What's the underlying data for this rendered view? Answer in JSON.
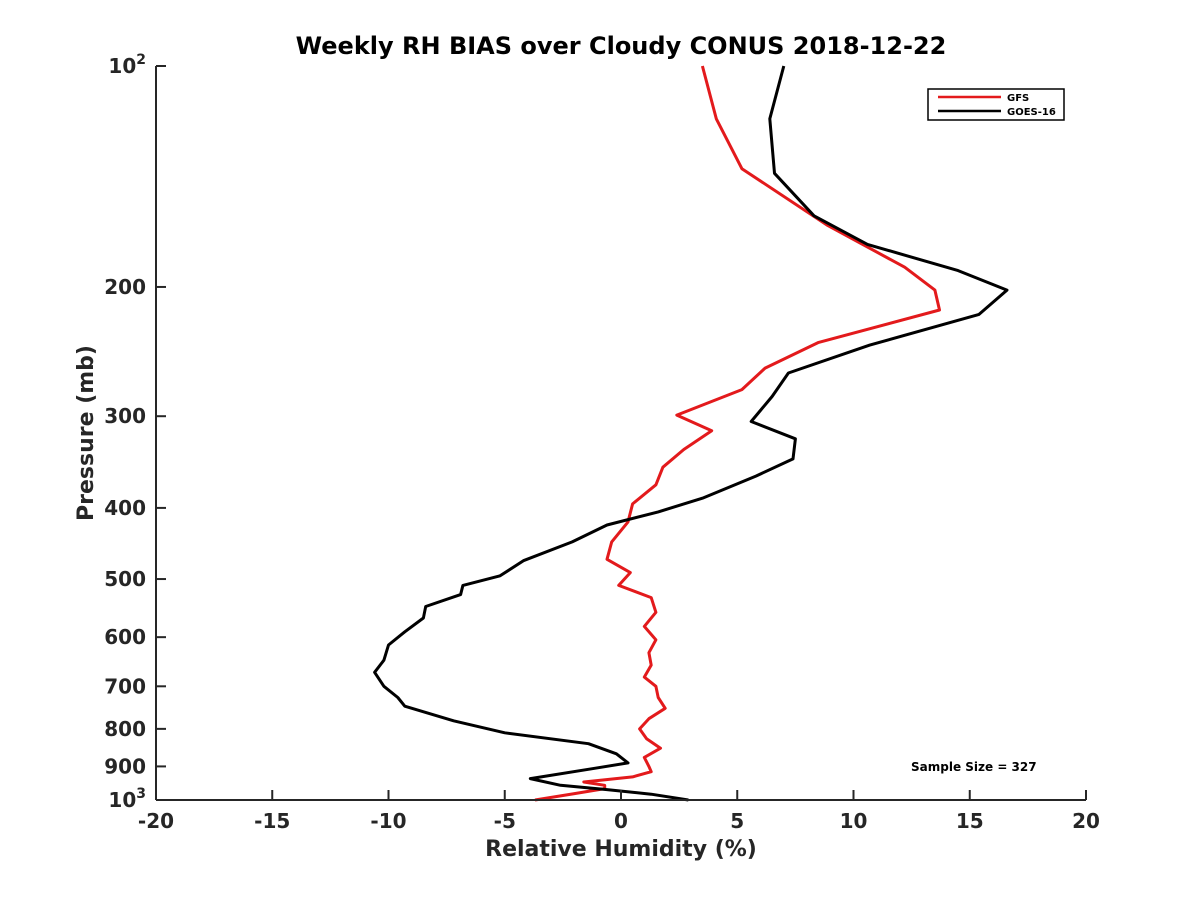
{
  "chart_data": {
    "type": "line",
    "title": "Weekly RH BIAS over Cloudy CONUS 2018-12-22",
    "xlabel": "Relative Humidity (%)",
    "ylabel": "Pressure (mb)",
    "xlim": [
      -20,
      20
    ],
    "ylim": [
      100,
      1000
    ],
    "y_scale": "log",
    "y_reversed": true,
    "grid": false,
    "legend_position": "top-right",
    "x_ticks": [
      -20,
      -15,
      -10,
      -5,
      0,
      5,
      10,
      15,
      20
    ],
    "x_tick_labels": [
      "-20",
      "-15",
      "-10",
      "-5",
      "0",
      "5",
      "10",
      "15",
      "20"
    ],
    "y_ticks": [
      100,
      200,
      300,
      400,
      500,
      600,
      700,
      800,
      900,
      1000
    ],
    "y_tick_labels": [
      {
        "base": "10",
        "exp": "2"
      },
      {
        "base": "200",
        "exp": ""
      },
      {
        "base": "300",
        "exp": ""
      },
      {
        "base": "400",
        "exp": ""
      },
      {
        "base": "500",
        "exp": ""
      },
      {
        "base": "600",
        "exp": ""
      },
      {
        "base": "700",
        "exp": ""
      },
      {
        "base": "800",
        "exp": ""
      },
      {
        "base": "900",
        "exp": ""
      },
      {
        "base": "10",
        "exp": "3"
      }
    ],
    "annotation": "Sample Size = 327",
    "series": [
      {
        "name": "GFS",
        "color": "#e31a1c",
        "x": [
          3.5,
          4.1,
          5.2,
          8.9,
          12.2,
          13.5,
          13.7,
          8.5,
          6.2,
          5.2,
          2.4,
          3.9,
          2.7,
          1.8,
          1.5,
          0.5,
          0.3,
          -0.4,
          -0.6,
          0.4,
          -0.1,
          1.3,
          1.5,
          1.0,
          1.5,
          1.2,
          1.3,
          1.0,
          1.5,
          1.6,
          1.9,
          1.2,
          0.8,
          1.1,
          1.7,
          1.0,
          1.2,
          1.3,
          0.5,
          -1.6,
          -0.7,
          -0.7,
          -2.0,
          -3.7
        ],
        "y": [
          100,
          118,
          138,
          165,
          188,
          202,
          215,
          238,
          258,
          276,
          299,
          314,
          333,
          352,
          372,
          395,
          418,
          445,
          470,
          490,
          510,
          530,
          555,
          580,
          605,
          630,
          655,
          680,
          700,
          725,
          750,
          775,
          800,
          825,
          850,
          875,
          900,
          915,
          930,
          945,
          955,
          965,
          980,
          1000
        ]
      },
      {
        "name": "GOES-16",
        "color": "#000000",
        "x": [
          7.0,
          6.4,
          6.6,
          8.3,
          10.6,
          14.5,
          16.6,
          15.4,
          10.7,
          7.2,
          6.5,
          5.6,
          7.5,
          7.4,
          5.8,
          3.5,
          1.6,
          -0.6,
          -2.1,
          -4.2,
          -5.2,
          -6.8,
          -6.9,
          -8.4,
          -8.5,
          -9.3,
          -10.0,
          -10.2,
          -10.6,
          -10.2,
          -9.6,
          -9.3,
          -7.2,
          -5.0,
          -1.4,
          -0.2,
          0.3,
          -1.1,
          -3.9,
          -2.6,
          -0.6,
          1.3,
          2.9
        ],
        "y": [
          100,
          118,
          140,
          160,
          175,
          190,
          202,
          218,
          240,
          262,
          282,
          305,
          322,
          343,
          362,
          388,
          405,
          422,
          445,
          472,
          495,
          510,
          525,
          545,
          565,
          590,
          615,
          645,
          670,
          700,
          725,
          745,
          780,
          810,
          838,
          865,
          890,
          905,
          935,
          955,
          968,
          982,
          1000
        ]
      }
    ]
  }
}
